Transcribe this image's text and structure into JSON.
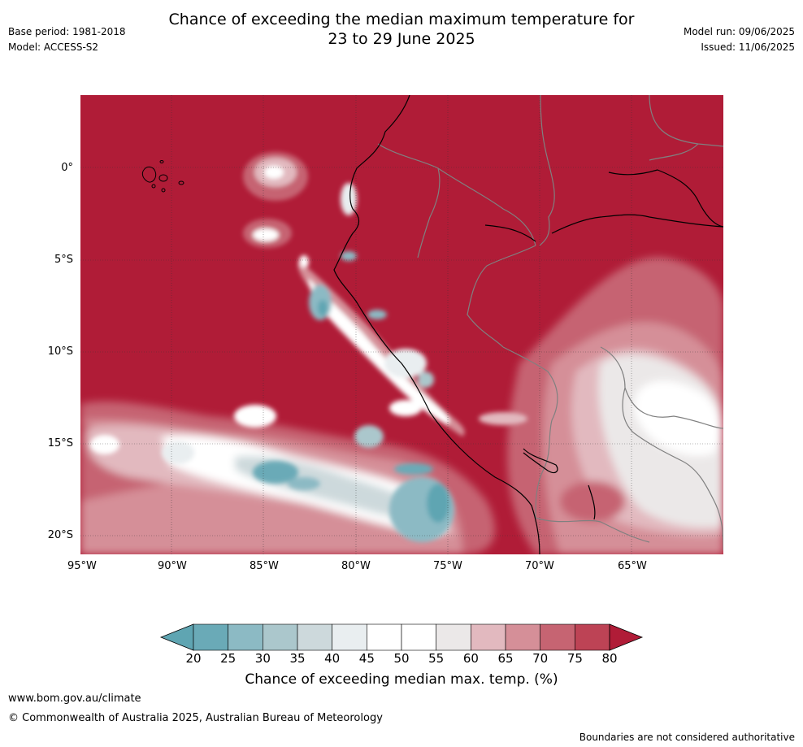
{
  "title": {
    "line1": "Chance of exceeding the median maximum temperature for",
    "line2": "23 to 29 June 2025"
  },
  "meta": {
    "base_period": "Base period: 1981-2018",
    "model": "Model: ACCESS-S2",
    "model_run": "Model run: 09/06/2025",
    "issued": "Issued: 11/06/2025"
  },
  "map": {
    "lon_ticks": [
      "95°W",
      "90°W",
      "85°W",
      "80°W",
      "75°W",
      "70°W",
      "65°W"
    ],
    "lat_ticks": [
      "0°",
      "5°S",
      "10°S",
      "15°S",
      "20°S"
    ],
    "colors": {
      "land_ocean_high": "#b01c37",
      "coastline": "#000000",
      "border": "#808080",
      "grid": "#333333"
    }
  },
  "colorbar": {
    "ticks": [
      "20",
      "25",
      "30",
      "35",
      "40",
      "45",
      "50",
      "55",
      "60",
      "65",
      "70",
      "75",
      "80"
    ],
    "colors": [
      "#5fa5b2",
      "#6aaab7",
      "#8cbac4",
      "#abc7cc",
      "#cdd9dc",
      "#e9eef0",
      "#ffffff",
      "#ffffff",
      "#ebe8e8",
      "#e2b9bf",
      "#d58f98",
      "#c66472",
      "#bd4355",
      "#b01c37"
    ],
    "label": "Chance of exceeding median max. temp. (%)"
  },
  "footer": {
    "website": "www.bom.gov.au/climate",
    "copyright": "© Commonwealth of Australia 2025, Australian Bureau of Meteorology",
    "disclaimer": "Boundaries are not considered authoritative"
  }
}
